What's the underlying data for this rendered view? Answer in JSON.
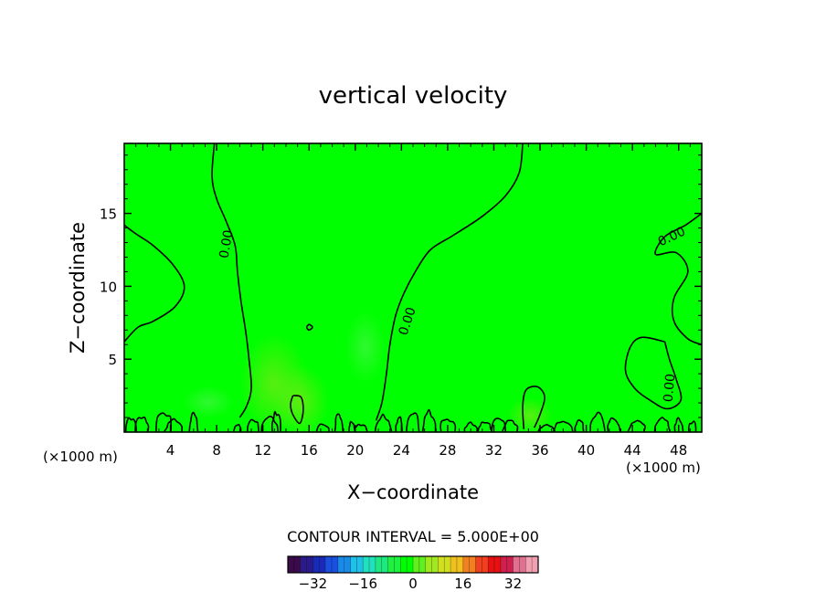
{
  "chart_data": {
    "type": "heatmap",
    "title": "vertical velocity",
    "xlabel": "X−coordinate",
    "ylabel": "Z−coordinate",
    "x_unit_left": "(×1000 m)",
    "x_unit_right": "(×1000 m)",
    "xlim": [
      0,
      50
    ],
    "ylim": [
      0,
      19.8
    ],
    "x_ticks": [
      4,
      8,
      12,
      16,
      20,
      24,
      28,
      32,
      36,
      40,
      44,
      48
    ],
    "x_tick_labels": [
      "4",
      "8",
      "12",
      "16",
      "20",
      "24",
      "28",
      "32",
      "36",
      "40",
      "44",
      "48"
    ],
    "y_ticks": [
      5,
      10,
      15
    ],
    "y_tick_labels": [
      "5",
      "10",
      "15"
    ],
    "contour_interval_text": "CONTOUR INTERVAL =  5.000E+00",
    "contour_label": "0.00",
    "colorbar": {
      "range": [
        -40,
        40
      ],
      "ticks": [
        -32,
        -16,
        0,
        16,
        32
      ],
      "tick_labels": [
        "−32",
        "−16",
        "0",
        "16",
        "32"
      ],
      "colors": [
        "#3a0a4a",
        "#2a1a8a",
        "#1a2ab8",
        "#1a50e0",
        "#1a8ae8",
        "#20c0e8",
        "#20e0c0",
        "#20e880",
        "#20f040",
        "#00ff00",
        "#60f020",
        "#a0e820",
        "#d0e020",
        "#f0c020",
        "#f08020",
        "#f04020",
        "#e81010",
        "#d02050",
        "#e07090",
        "#f0a0b0"
      ]
    },
    "field_background": "#00ff00",
    "zero_contours": [
      {
        "label": "left-bulge",
        "points": [
          [
            0,
            14.2
          ],
          [
            1.0,
            13.6
          ],
          [
            2.5,
            12.8
          ],
          [
            4.2,
            11.5
          ],
          [
            5.2,
            10.0
          ],
          [
            4.4,
            8.6
          ],
          [
            2.5,
            7.6
          ],
          [
            1.2,
            7.2
          ],
          [
            0,
            6.2
          ]
        ]
      },
      {
        "label": "west-front",
        "points": [
          [
            7.8,
            19.8
          ],
          [
            7.6,
            17.5
          ],
          [
            8.0,
            16.0
          ],
          [
            8.8,
            14.5
          ],
          [
            9.6,
            12.8
          ],
          [
            9.8,
            11.0
          ],
          [
            10.1,
            9.0
          ],
          [
            10.5,
            7.0
          ],
          [
            10.8,
            5.0
          ],
          [
            11.0,
            3.0
          ],
          [
            10.6,
            1.8
          ],
          [
            10.0,
            1.0
          ]
        ]
      },
      {
        "label": "east-front",
        "points": [
          [
            34.5,
            19.8
          ],
          [
            34.2,
            17.8
          ],
          [
            33.0,
            16.2
          ],
          [
            31.0,
            14.8
          ],
          [
            28.5,
            13.5
          ],
          [
            26.5,
            12.5
          ],
          [
            25.2,
            11.0
          ],
          [
            24.2,
            9.5
          ],
          [
            23.5,
            8.0
          ],
          [
            23.0,
            6.0
          ],
          [
            22.7,
            4.0
          ],
          [
            22.3,
            2.0
          ],
          [
            21.8,
            0.8
          ]
        ]
      },
      {
        "label": "right-upper",
        "points": [
          [
            50,
            15.0
          ],
          [
            48.6,
            14.2
          ],
          [
            46.8,
            13.4
          ],
          [
            46.0,
            12.2
          ],
          [
            47.8,
            12.3
          ],
          [
            48.8,
            11.0
          ],
          [
            47.6,
            9.2
          ],
          [
            47.6,
            7.6
          ],
          [
            48.8,
            6.4
          ],
          [
            50,
            6.0
          ]
        ]
      },
      {
        "label": "right-lower",
        "points": [
          [
            46.8,
            6.2
          ],
          [
            44.8,
            6.5
          ],
          [
            43.8,
            5.8
          ],
          [
            43.4,
            4.2
          ],
          [
            44.2,
            3.0
          ],
          [
            45.5,
            2.2
          ],
          [
            47.0,
            1.6
          ],
          [
            48.2,
            2.2
          ],
          [
            47.8,
            3.6
          ],
          [
            47.2,
            5.0
          ],
          [
            46.8,
            6.2
          ]
        ]
      },
      {
        "label": "core-15",
        "points": [
          [
            14.6,
            2.5
          ],
          [
            15.3,
            2.4
          ],
          [
            15.5,
            1.5
          ],
          [
            15.2,
            0.6
          ],
          [
            14.6,
            1.2
          ],
          [
            14.4,
            1.9
          ],
          [
            14.6,
            2.5
          ]
        ]
      },
      {
        "label": "dot-16",
        "points": [
          [
            16.0,
            7.4
          ],
          [
            16.3,
            7.2
          ],
          [
            16.0,
            7.0
          ],
          [
            15.8,
            7.2
          ],
          [
            16.0,
            7.4
          ]
        ]
      },
      {
        "label": "blob-35",
        "points": [
          [
            34.6,
            0.2
          ],
          [
            34.5,
            1.8
          ],
          [
            34.8,
            2.9
          ],
          [
            35.8,
            3.1
          ],
          [
            36.4,
            2.4
          ],
          [
            36.0,
            1.2
          ],
          [
            35.5,
            0.3
          ]
        ]
      }
    ]
  }
}
